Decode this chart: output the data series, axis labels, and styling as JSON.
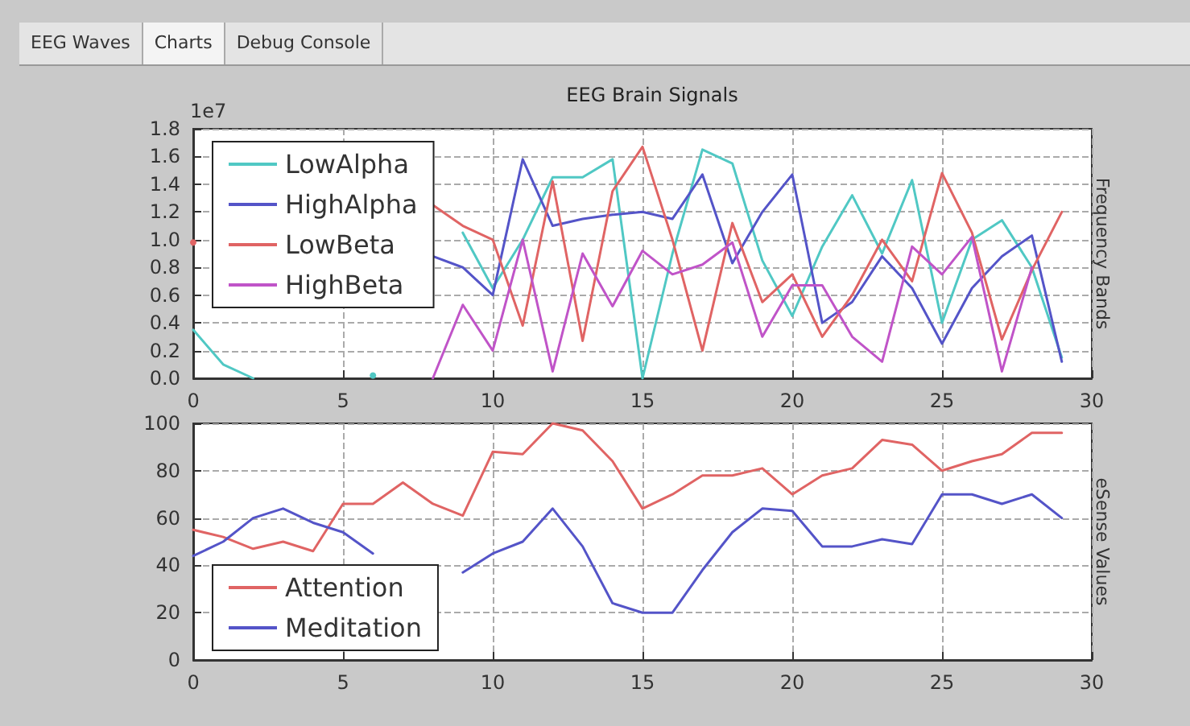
{
  "chart_data": [
    {
      "type": "line",
      "title": "EEG Brain Signals",
      "ylabel": "Frequency Bands",
      "annotations": [
        "1e7",
        "EEG Waves",
        "Charts",
        "Debug Console"
      ],
      "x": [
        0,
        1,
        2,
        3,
        4,
        5,
        6,
        7,
        8,
        9,
        10,
        11,
        12,
        13,
        14,
        15,
        16,
        17,
        18,
        19,
        20,
        21,
        22,
        23,
        24,
        25,
        26,
        27,
        28,
        29
      ],
      "series": [
        {
          "name": "LowAlpha",
          "color": "#50c8c4",
          "values": [
            0.35,
            0.1,
            0.0,
            null,
            null,
            null,
            0.02,
            null,
            null,
            1.05,
            0.65,
            1.0,
            1.45,
            1.45,
            1.58,
            0.0,
            0.9,
            1.65,
            1.55,
            0.85,
            0.45,
            0.95,
            1.32,
            0.9,
            1.43,
            0.4,
            1.0,
            1.14,
            0.8,
            0.15
          ]
        },
        {
          "name": "HighAlpha",
          "color": "#5454c8",
          "values": [
            null,
            null,
            null,
            null,
            null,
            null,
            null,
            null,
            0.88,
            0.8,
            0.6,
            1.58,
            1.1,
            1.15,
            1.18,
            1.2,
            1.15,
            1.47,
            0.83,
            1.2,
            1.47,
            0.4,
            0.55,
            0.88,
            0.65,
            0.25,
            0.65,
            0.88,
            1.03,
            0.12
          ]
        },
        {
          "name": "LowBeta",
          "color": "#e06464",
          "values": [
            0.98,
            null,
            null,
            null,
            null,
            null,
            null,
            null,
            1.25,
            1.1,
            1.0,
            0.38,
            1.42,
            0.27,
            1.35,
            1.67,
            1.0,
            0.2,
            1.12,
            0.55,
            0.75,
            0.3,
            0.6,
            1.0,
            0.7,
            1.48,
            1.05,
            0.28,
            0.78,
            1.2
          ]
        },
        {
          "name": "HighBeta",
          "color": "#c054c8",
          "values": [
            null,
            null,
            null,
            null,
            null,
            null,
            null,
            null,
            0.0,
            0.53,
            0.2,
            1.0,
            0.05,
            0.9,
            0.52,
            0.92,
            0.75,
            0.82,
            0.98,
            0.3,
            0.67,
            0.67,
            0.3,
            0.12,
            0.95,
            0.75,
            1.02,
            0.05,
            0.8,
            null
          ]
        }
      ],
      "xlim": [
        0,
        30
      ],
      "xticks": [
        0,
        5,
        10,
        15,
        20,
        25,
        30
      ],
      "ylim": [
        0,
        1.8
      ],
      "yticks": [
        {
          "value": 0,
          "label": "0.0"
        },
        {
          "value": 0.2,
          "label": "0.2"
        },
        {
          "value": 0.4,
          "label": "0.4"
        },
        {
          "value": 0.6,
          "label": "0.6"
        },
        {
          "value": 0.8,
          "label": "0.8"
        },
        {
          "value": 1.0,
          "label": "1.0"
        },
        {
          "value": 1.2,
          "label": "1.2"
        },
        {
          "value": 1.4,
          "label": "1.4"
        },
        {
          "value": 1.6,
          "label": "1.6"
        },
        {
          "value": 1.8,
          "label": "1.8"
        }
      ],
      "grid": true,
      "legend": "top left",
      "marker": "none",
      "line_style": "solid"
    },
    {
      "type": "line",
      "ylabel": "eSense Values",
      "x": [
        0,
        1,
        2,
        3,
        4,
        5,
        6,
        7,
        8,
        9,
        10,
        11,
        12,
        13,
        14,
        15,
        16,
        17,
        18,
        19,
        20,
        21,
        22,
        23,
        24,
        25,
        26,
        27,
        28,
        29
      ],
      "series": [
        {
          "name": "Attention",
          "color": "#e06464",
          "values": [
            55,
            52,
            47,
            50,
            46,
            66,
            66,
            75,
            66,
            61,
            88,
            87,
            100,
            97,
            84,
            64,
            70,
            78,
            78,
            81,
            70,
            78,
            81,
            93,
            91,
            80,
            84,
            87,
            96,
            96
          ]
        },
        {
          "name": "Meditation",
          "color": "#5454c8",
          "values": [
            44,
            50,
            60,
            64,
            58,
            54,
            45,
            null,
            null,
            37,
            45,
            50,
            64,
            48,
            24,
            20,
            20,
            38,
            54,
            64,
            63,
            48,
            48,
            51,
            49,
            70,
            70,
            66,
            70,
            60
          ]
        }
      ],
      "xlim": [
        0,
        30
      ],
      "xticks": [
        0,
        5,
        10,
        15,
        20,
        25,
        30
      ],
      "ylim": [
        0,
        100
      ],
      "yticks": [
        0,
        20,
        40,
        60,
        80,
        100
      ],
      "grid": true,
      "legend": "bottom left",
      "marker": "none",
      "line_style": "solid"
    }
  ]
}
